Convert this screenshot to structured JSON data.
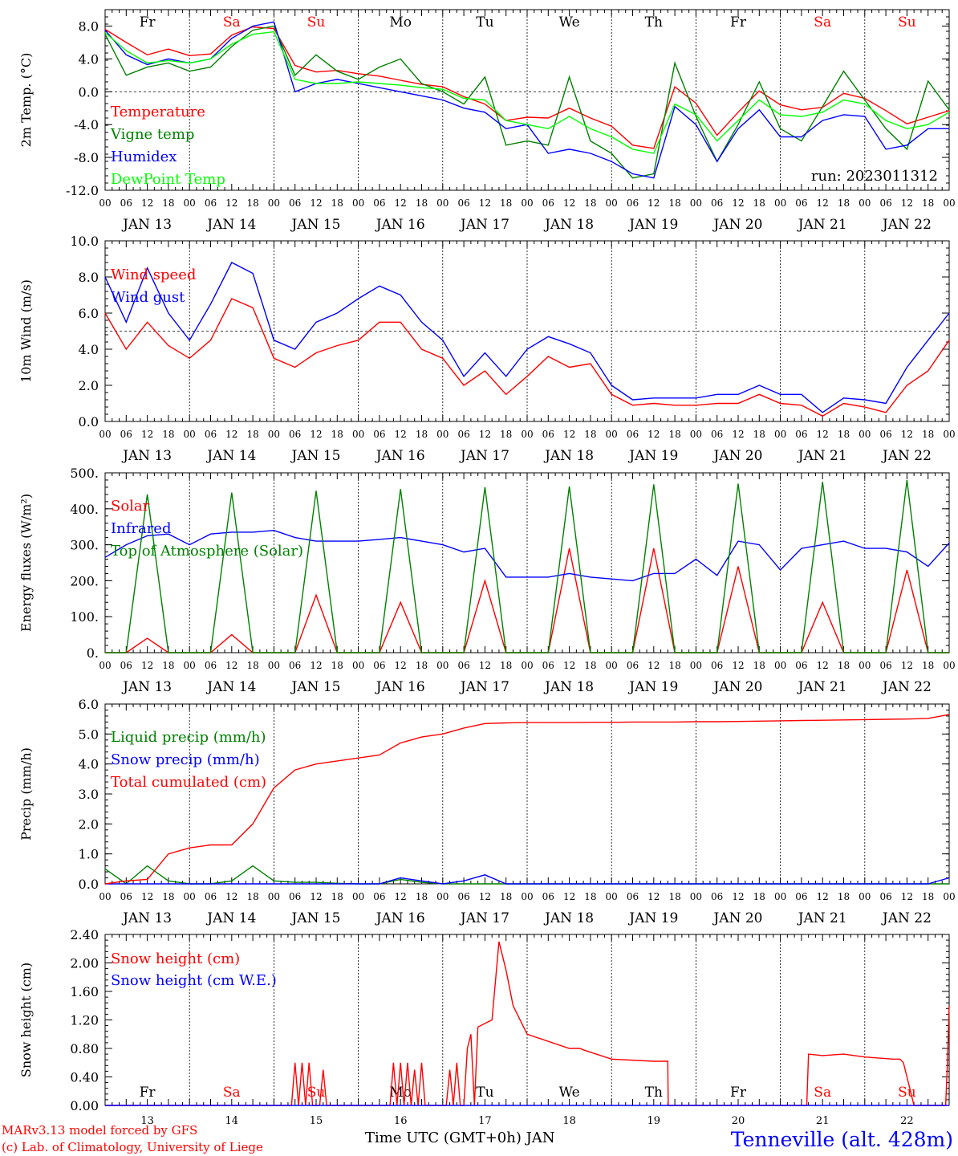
{
  "footer": {
    "credit_line1": "MARv3.13 model forced by GFS",
    "credit_line2": "(c) Lab. of Climatology, University of Liege",
    "station": "Tenneville (alt. 428m)",
    "xaxis_label": "Time UTC (GMT+0h) JAN"
  },
  "colors": {
    "red": "#ff0000",
    "green": "#008000",
    "blue": "#0000ff",
    "light_green": "#00ff00",
    "black": "#000000"
  },
  "axis": {
    "hour_ticks": [
      "00",
      "06",
      "12",
      "18",
      "00",
      "06",
      "12",
      "18",
      "00",
      "06",
      "12",
      "18",
      "00",
      "06",
      "12",
      "18",
      "00",
      "06",
      "12",
      "18",
      "00",
      "06",
      "12",
      "18",
      "00",
      "06",
      "12",
      "18",
      "00",
      "06",
      "12",
      "18",
      "00",
      "06",
      "12",
      "18",
      "00",
      "06",
      "12",
      "18",
      "00"
    ],
    "dates": [
      "JAN 13",
      "JAN 14",
      "JAN 15",
      "JAN 16",
      "JAN 17",
      "JAN 18",
      "JAN 19",
      "JAN 20",
      "JAN 21",
      "JAN 22"
    ],
    "days_of_week": [
      "Fr",
      "Sa",
      "Su",
      "Mo",
      "Tu",
      "We",
      "Th",
      "Fr",
      "Sa",
      "Su"
    ],
    "dow_colors": [
      "#000000",
      "#ff0000",
      "#ff0000",
      "#000000",
      "#000000",
      "#000000",
      "#000000",
      "#000000",
      "#ff0000",
      "#ff0000"
    ],
    "bottom_day_numbers": [
      "13",
      "14",
      "15",
      "16",
      "17",
      "18",
      "19",
      "20",
      "21",
      "22"
    ],
    "x_unit": "hours since JAN 13 00 UTC"
  },
  "chart_data": [
    {
      "type": "line",
      "ylabel": "2m Temp. (°C)",
      "ylim": [
        -12,
        10
      ],
      "y_ticks": [
        "8.0",
        "4.0",
        "0.0",
        "-4.0",
        "-8.0",
        "-12.0"
      ],
      "y_tick_values": [
        8,
        4,
        0,
        -4,
        -8,
        -12
      ],
      "ref_line": 0,
      "annotation": "run: 2023011312",
      "x": [
        0,
        6,
        12,
        18,
        24,
        30,
        36,
        42,
        48,
        54,
        60,
        66,
        72,
        78,
        84,
        90,
        96,
        102,
        108,
        114,
        120,
        126,
        132,
        138,
        144,
        150,
        156,
        162,
        168,
        174,
        180,
        186,
        192,
        198,
        204,
        210,
        216,
        222,
        228,
        234,
        240
      ],
      "series": [
        {
          "name": "Temperature",
          "color": "#ff0000",
          "values": [
            7.6,
            6.0,
            4.5,
            5.2,
            4.4,
            4.6,
            6.9,
            7.9,
            7.7,
            3.2,
            2.4,
            2.6,
            2.2,
            1.9,
            1.4,
            0.9,
            0.6,
            -0.6,
            -1.5,
            -3.5,
            -3.1,
            -3.2,
            -2.0,
            -3.2,
            -4.2,
            -6.5,
            -6.9,
            0.6,
            -1.4,
            -5.3,
            -2.5,
            0.1,
            -1.6,
            -2.2,
            -1.9,
            -0.2,
            -0.8,
            -2.3,
            -3.9,
            -3.1,
            -2.3
          ]
        },
        {
          "name": "Vigne temp",
          "color": "#008000",
          "values": [
            7.0,
            2.0,
            3.0,
            3.5,
            2.5,
            3.0,
            5.5,
            7.5,
            8.0,
            2.0,
            4.5,
            2.5,
            1.5,
            3.0,
            4.0,
            1.0,
            0.0,
            -1.5,
            1.8,
            -6.5,
            -6.0,
            -6.5,
            1.8,
            -6.0,
            -7.5,
            -10.5,
            -10.0,
            3.5,
            -3.0,
            -8.5,
            -4.0,
            1.2,
            -4.5,
            -6.0,
            -1.8,
            2.5,
            -1.0,
            -4.5,
            -7.0,
            1.3,
            -2.2
          ]
        },
        {
          "name": "Humidex",
          "color": "#0000ff",
          "values": [
            7.5,
            4.5,
            3.3,
            4.0,
            3.5,
            4.0,
            6.5,
            8.0,
            8.5,
            0.0,
            1.0,
            1.5,
            1.0,
            0.5,
            0.0,
            -0.5,
            -1.0,
            -2.0,
            -2.5,
            -4.5,
            -4.0,
            -7.5,
            -7.0,
            -7.5,
            -8.5,
            -10.0,
            -10.5,
            -1.8,
            -4.0,
            -8.5,
            -4.5,
            -2.2,
            -5.5,
            -5.5,
            -3.5,
            -2.8,
            -3.0,
            -7.0,
            -6.5,
            -4.5,
            -4.5
          ]
        },
        {
          "name": "DewPoint Temp",
          "color": "#00ff00",
          "values": [
            7.2,
            5.0,
            3.5,
            3.8,
            3.5,
            4.0,
            5.8,
            7.0,
            7.3,
            1.5,
            1.0,
            1.0,
            1.2,
            1.0,
            0.8,
            0.5,
            0.3,
            -0.8,
            -1.0,
            -3.5,
            -4.0,
            -4.5,
            -3.0,
            -4.5,
            -5.5,
            -7.0,
            -7.5,
            -1.5,
            -2.8,
            -6.0,
            -3.5,
            -1.0,
            -2.8,
            -3.0,
            -2.5,
            -1.0,
            -1.5,
            -3.5,
            -4.5,
            -4.0,
            -2.5
          ]
        }
      ]
    },
    {
      "type": "line",
      "ylabel": "10m Wind (m/s)",
      "ylim": [
        0,
        10
      ],
      "y_ticks": [
        "10.0",
        "8.0",
        "6.0",
        "4.0",
        "2.0",
        "0.0"
      ],
      "y_tick_values": [
        10,
        8,
        6,
        4,
        2,
        0
      ],
      "ref_line": 5,
      "x": [
        0,
        6,
        12,
        18,
        24,
        30,
        36,
        42,
        48,
        54,
        60,
        66,
        72,
        78,
        84,
        90,
        96,
        102,
        108,
        114,
        120,
        126,
        132,
        138,
        144,
        150,
        156,
        162,
        168,
        174,
        180,
        186,
        192,
        198,
        204,
        210,
        216,
        222,
        228,
        234,
        240
      ],
      "series": [
        {
          "name": "Wind speed",
          "color": "#ff0000",
          "values": [
            6.0,
            4.0,
            5.5,
            4.2,
            3.5,
            4.5,
            6.8,
            6.3,
            3.5,
            3.0,
            3.8,
            4.2,
            4.5,
            5.5,
            5.5,
            4.0,
            3.5,
            2.0,
            2.8,
            1.5,
            2.5,
            3.6,
            3.0,
            3.2,
            1.5,
            0.9,
            1.0,
            0.9,
            0.9,
            1.0,
            1.0,
            1.5,
            1.0,
            0.9,
            0.3,
            1.0,
            0.8,
            0.5,
            2.0,
            2.8,
            4.5
          ]
        },
        {
          "name": "Wind gust",
          "color": "#0000ff",
          "values": [
            8.0,
            5.5,
            8.5,
            6.0,
            4.5,
            6.5,
            8.8,
            8.2,
            4.5,
            4.0,
            5.5,
            6.0,
            6.8,
            7.5,
            7.0,
            5.5,
            4.5,
            2.5,
            3.8,
            2.5,
            4.0,
            4.7,
            4.3,
            3.8,
            2.0,
            1.2,
            1.3,
            1.3,
            1.3,
            1.5,
            1.5,
            2.0,
            1.5,
            1.5,
            0.5,
            1.3,
            1.2,
            1.0,
            3.0,
            4.5,
            6.0
          ]
        }
      ]
    },
    {
      "type": "line",
      "ylabel": "Energy fluxes (W/m²)",
      "ylim": [
        0,
        500
      ],
      "y_ticks": [
        "500.",
        "400.",
        "300.",
        "200.",
        "100.",
        "0."
      ],
      "y_tick_values": [
        500,
        400,
        300,
        200,
        100,
        0
      ],
      "x": [
        0,
        6,
        12,
        18,
        24,
        30,
        36,
        42,
        48,
        54,
        60,
        66,
        72,
        78,
        84,
        90,
        96,
        102,
        108,
        114,
        120,
        126,
        132,
        138,
        144,
        150,
        156,
        162,
        168,
        174,
        180,
        186,
        192,
        198,
        204,
        210,
        216,
        222,
        228,
        234,
        240
      ],
      "series": [
        {
          "name": "Solar",
          "color": "#ff0000",
          "values": [
            0,
            0,
            40,
            0,
            0,
            0,
            50,
            0,
            0,
            0,
            160,
            0,
            0,
            0,
            140,
            0,
            0,
            0,
            200,
            0,
            0,
            0,
            290,
            0,
            0,
            0,
            290,
            0,
            0,
            0,
            240,
            0,
            0,
            0,
            140,
            0,
            0,
            0,
            230,
            0,
            0
          ]
        },
        {
          "name": "Infrared",
          "color": "#0000ff",
          "values": [
            265,
            300,
            325,
            330,
            300,
            330,
            335,
            335,
            340,
            320,
            310,
            310,
            310,
            315,
            320,
            310,
            300,
            280,
            290,
            210,
            210,
            210,
            220,
            210,
            205,
            200,
            220,
            220,
            260,
            215,
            310,
            300,
            230,
            290,
            300,
            310,
            290,
            290,
            280,
            240,
            305
          ]
        },
        {
          "name": "Top of Atmosphere (Solar)",
          "color": "#008000",
          "values": [
            0,
            0,
            440,
            0,
            0,
            0,
            445,
            0,
            0,
            0,
            450,
            0,
            0,
            0,
            455,
            0,
            0,
            0,
            460,
            0,
            0,
            0,
            462,
            0,
            0,
            0,
            468,
            0,
            0,
            0,
            470,
            0,
            0,
            0,
            475,
            0,
            0,
            0,
            480,
            0,
            0
          ]
        }
      ]
    },
    {
      "type": "line",
      "ylabel": "Precip (mm/h)",
      "ylim": [
        0,
        6
      ],
      "y_ticks": [
        "6.0",
        "5.0",
        "4.0",
        "3.0",
        "2.0",
        "1.0",
        "0.0"
      ],
      "y_tick_values": [
        6,
        5,
        4,
        3,
        2,
        1,
        0
      ],
      "x": [
        0,
        6,
        12,
        18,
        24,
        30,
        36,
        42,
        48,
        54,
        60,
        66,
        72,
        78,
        84,
        90,
        96,
        102,
        108,
        114,
        120,
        126,
        132,
        138,
        144,
        150,
        156,
        162,
        168,
        174,
        180,
        186,
        192,
        198,
        204,
        210,
        216,
        222,
        228,
        234,
        240
      ],
      "series": [
        {
          "name": "Liquid precip (mm/h)",
          "color": "#008000",
          "values": [
            0.5,
            0,
            0.6,
            0.1,
            0,
            0,
            0.1,
            0.6,
            0.1,
            0.05,
            0.05,
            0.02,
            0,
            0,
            0.15,
            0.05,
            0,
            0,
            0,
            0,
            0,
            0,
            0,
            0,
            0,
            0,
            0,
            0,
            0,
            0,
            0,
            0,
            0,
            0,
            0,
            0,
            0,
            0,
            0,
            0,
            0
          ]
        },
        {
          "name": "Snow precip (mm/h)",
          "color": "#0000ff",
          "values": [
            0,
            0,
            0,
            0,
            0,
            0,
            0,
            0,
            0,
            0,
            0,
            0,
            0,
            0,
            0.2,
            0.1,
            0,
            0.1,
            0.3,
            0,
            0,
            0,
            0,
            0,
            0,
            0,
            0,
            0,
            0,
            0,
            0,
            0,
            0,
            0,
            0,
            0,
            0,
            0,
            0,
            0,
            0.2
          ]
        },
        {
          "name": "Total cumulated (cm)",
          "color": "#ff0000",
          "values": [
            0,
            0.1,
            0.15,
            1.0,
            1.2,
            1.3,
            1.3,
            2.0,
            3.2,
            3.8,
            4.0,
            4.1,
            4.2,
            4.3,
            4.7,
            4.9,
            5.0,
            5.2,
            5.35,
            5.37,
            5.38,
            5.38,
            5.38,
            5.39,
            5.39,
            5.4,
            5.4,
            5.4,
            5.41,
            5.41,
            5.42,
            5.43,
            5.44,
            5.45,
            5.46,
            5.47,
            5.48,
            5.49,
            5.5,
            5.52,
            5.65
          ]
        }
      ]
    },
    {
      "type": "line",
      "ylabel": "Snow height (cm)",
      "ylim": [
        0,
        2.4
      ],
      "y_ticks": [
        "2.40",
        "2.00",
        "1.60",
        "1.20",
        "0.80",
        "0.40",
        "0.00"
      ],
      "y_tick_values": [
        2.4,
        2.0,
        1.6,
        1.2,
        0.8,
        0.4,
        0.0
      ],
      "x": [
        0,
        24,
        48,
        50,
        51,
        52,
        53,
        54,
        55,
        56,
        57,
        58,
        59,
        60,
        61,
        62,
        63,
        64,
        65,
        66,
        67,
        68,
        69,
        70,
        71,
        72,
        73,
        74,
        75,
        76,
        77,
        78,
        79,
        80,
        81,
        82,
        83,
        84,
        85,
        86,
        87,
        88,
        89,
        90,
        91,
        92,
        93,
        94,
        95,
        96,
        97,
        98,
        99,
        100,
        101,
        102,
        103,
        104,
        105,
        106,
        108,
        110,
        112,
        114,
        116,
        120,
        132,
        135,
        136,
        144,
        156,
        160,
        160.1,
        168,
        180,
        192,
        199.5,
        200,
        204,
        210,
        216,
        224,
        226,
        227,
        230,
        238,
        239,
        239.5,
        240
      ],
      "series": [
        {
          "name": "Snow height (cm)",
          "color": "#ff0000",
          "values": [
            0,
            0,
            0,
            0,
            0,
            0,
            0,
            0.6,
            0,
            0.6,
            0,
            0.6,
            0,
            0,
            0,
            0.5,
            0,
            0,
            0,
            0,
            0,
            0,
            0,
            0,
            0,
            0,
            0,
            0,
            0,
            0,
            0,
            0,
            0,
            0,
            0,
            0.6,
            0,
            0.6,
            0,
            0.6,
            0,
            0.5,
            0,
            0.6,
            0,
            0,
            0,
            0,
            0,
            0,
            0,
            0.5,
            0,
            0.6,
            0,
            0,
            0.8,
            1.0,
            0,
            1.1,
            1.15,
            1.2,
            2.3,
            1.9,
            1.4,
            1.0,
            0.8,
            0.8,
            0.78,
            0.65,
            0.62,
            0.62,
            0,
            0,
            0,
            0,
            0,
            0.72,
            0.7,
            0.72,
            0.68,
            0.65,
            0.65,
            0.6,
            0,
            0,
            0,
            0.6,
            1.4
          ]
        },
        {
          "name": "Snow height (cm W.E.)",
          "color": "#0000ff",
          "values": [
            0,
            0,
            0,
            0,
            0,
            0,
            0,
            0,
            0,
            0,
            0,
            0,
            0,
            0,
            0,
            0,
            0,
            0,
            0,
            0,
            0,
            0,
            0,
            0,
            0,
            0,
            0,
            0,
            0,
            0,
            0,
            0,
            0,
            0,
            0,
            0,
            0,
            0,
            0,
            0,
            0,
            0,
            0,
            0,
            0,
            0,
            0,
            0,
            0,
            0,
            0,
            0,
            0,
            0,
            0,
            0,
            0,
            0,
            0,
            0,
            0,
            0,
            0,
            0,
            0,
            0,
            0,
            0,
            0,
            0,
            0,
            0,
            0,
            0,
            0,
            0,
            0,
            0,
            0,
            0,
            0,
            0,
            0,
            0,
            0,
            0,
            0,
            0,
            0
          ]
        }
      ]
    }
  ]
}
